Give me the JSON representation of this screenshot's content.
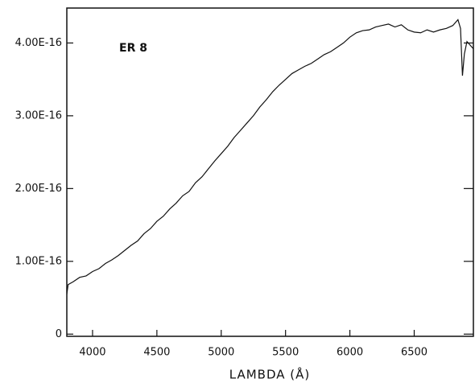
{
  "chart_data": {
    "type": "line",
    "annotation": "ER 8",
    "xlabel": "LAMBDA (Å)",
    "color": "#111111",
    "grid": false,
    "xlim": [
      3800,
      6960
    ],
    "xticks": [
      4000,
      4500,
      5000,
      5500,
      6000,
      6500
    ],
    "ylim": [
      -3e-18,
      4.48e-16
    ],
    "yticks": [
      0,
      {
        "value": 1e-16,
        "label": "1.00E-16"
      },
      {
        "value": 2e-16,
        "label": "2.00E-16"
      },
      {
        "value": 3e-16,
        "label": "3.00E-16"
      },
      {
        "value": 4e-16,
        "label": "4.00E-16"
      }
    ],
    "x": [
      3800,
      3810,
      3850,
      3900,
      3950,
      4000,
      4050,
      4100,
      4150,
      4200,
      4250,
      4300,
      4350,
      4400,
      4450,
      4500,
      4550,
      4600,
      4650,
      4700,
      4750,
      4800,
      4850,
      4900,
      4950,
      5000,
      5050,
      5100,
      5150,
      5200,
      5250,
      5300,
      5350,
      5400,
      5450,
      5500,
      5550,
      5600,
      5650,
      5700,
      5750,
      5800,
      5850,
      5900,
      5950,
      6000,
      6050,
      6100,
      6150,
      6200,
      6250,
      6300,
      6350,
      6400,
      6450,
      6500,
      6550,
      6600,
      6650,
      6700,
      6750,
      6800,
      6840,
      6860,
      6875,
      6890,
      6910,
      6930,
      6960
    ],
    "values": [
      5.5e-17,
      6.8e-17,
      7.2e-17,
      7.8e-17,
      8e-17,
      8.6e-17,
      9e-17,
      9.7e-17,
      1.02e-16,
      1.08e-16,
      1.15e-16,
      1.22e-16,
      1.28e-16,
      1.38e-16,
      1.45e-16,
      1.55e-16,
      1.62e-16,
      1.72e-16,
      1.8e-16,
      1.9e-16,
      1.96e-16,
      2.08e-16,
      2.16e-16,
      2.27e-16,
      2.38e-16,
      2.48e-16,
      2.58e-16,
      2.7e-16,
      2.8e-16,
      2.9e-16,
      3e-16,
      3.12e-16,
      3.22e-16,
      3.33e-16,
      3.42e-16,
      3.5e-16,
      3.58e-16,
      3.63e-16,
      3.68e-16,
      3.72e-16,
      3.78e-16,
      3.84e-16,
      3.88e-16,
      3.94e-16,
      4e-16,
      4.08e-16,
      4.14e-16,
      4.17e-16,
      4.18e-16,
      4.22e-16,
      4.24e-16,
      4.26e-16,
      4.22e-16,
      4.25e-16,
      4.18e-16,
      4.15e-16,
      4.14e-16,
      4.18e-16,
      4.15e-16,
      4.18e-16,
      4.2e-16,
      4.24e-16,
      4.32e-16,
      4.2e-16,
      3.55e-16,
      3.85e-16,
      4.02e-16,
      3.98e-16,
      3.92e-16
    ]
  }
}
